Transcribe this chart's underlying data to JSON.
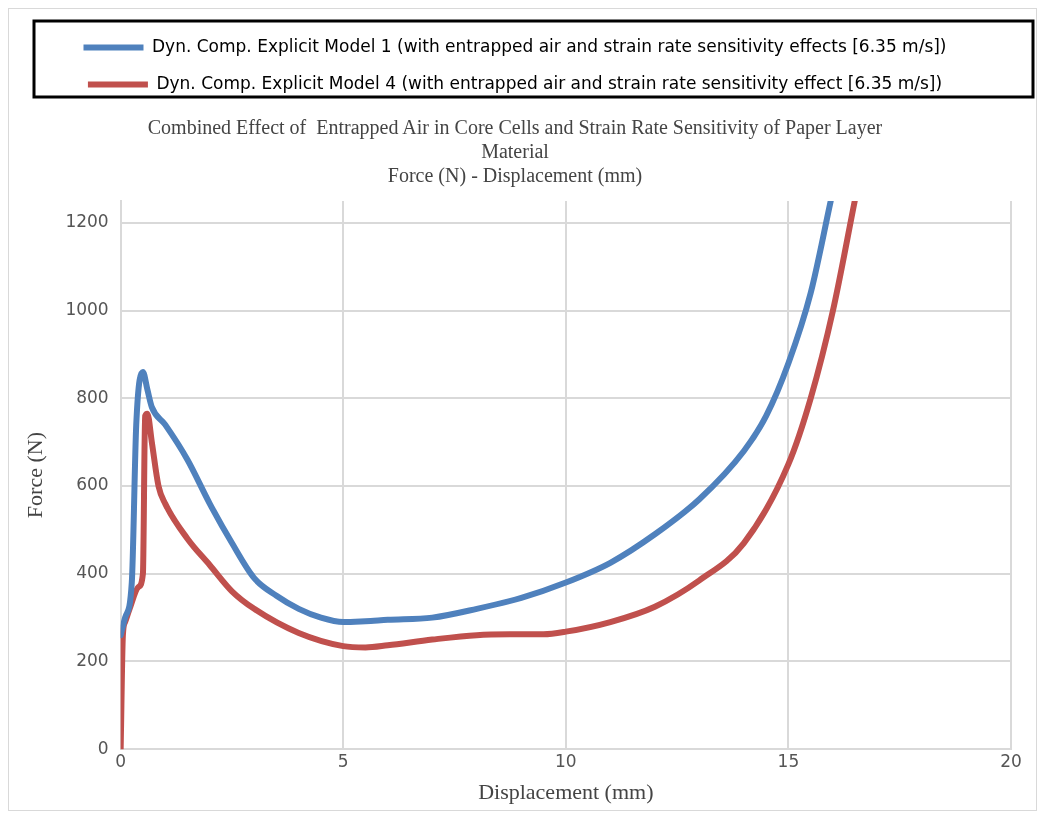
{
  "chart_data": {
    "type": "line",
    "title": "Combined Effect of  Entrapped Air in Core Cells and Strain Rate Sensitivity of Paper Layer Material",
    "subtitle": "Force (N) - Displacement (mm)",
    "xlabel": "Displacement (mm)",
    "ylabel": "Force (N)",
    "xlim": [
      0,
      20
    ],
    "xticks": [
      0,
      5,
      10,
      15,
      20
    ],
    "ylim": [
      0,
      1250
    ],
    "yticks": [
      0,
      200,
      400,
      600,
      800,
      1000,
      1200
    ],
    "grid": true,
    "legend": "top",
    "marker": "none",
    "line_style": "solid",
    "series": [
      {
        "name": "Dyn. Comp. Explicit Model 1 (with entrapped air and strain rate sensitivity effects [6.35 m/s])",
        "color": "#4f81bd",
        "x": [
          0,
          0.1,
          0.25,
          0.35,
          0.5,
          0.6,
          0.7,
          1,
          1.5,
          2,
          2.5,
          3,
          3.5,
          4,
          4.5,
          5,
          5.5,
          6,
          7,
          8,
          9,
          10,
          11,
          12,
          13,
          14,
          14.5,
          15,
          15.5,
          15.95
        ],
        "values": [
          260,
          300,
          380,
          740,
          860,
          820,
          780,
          740,
          660,
          560,
          470,
          390,
          350,
          320,
          300,
          290,
          292,
          295,
          300,
          320,
          345,
          380,
          425,
          490,
          570,
          680,
          760,
          880,
          1040,
          1250
        ]
      },
      {
        "name": "Dyn. Comp. Explicit Model 4 (with entrapped air and strain rate sensitivity effect [6.35 m/s])",
        "color": "#c0504d",
        "x": [
          0,
          0.05,
          0.1,
          0.2,
          0.4,
          0.5,
          0.55,
          0.6,
          0.7,
          0.85,
          1,
          1.5,
          2,
          2.5,
          3,
          4,
          5,
          5.5,
          6,
          7,
          8,
          9,
          9.5,
          10,
          11,
          12,
          13,
          14,
          15,
          15.5,
          16,
          16.49
        ],
        "values": [
          0,
          260,
          290,
          320,
          370,
          400,
          760,
          765,
          700,
          600,
          560,
          480,
          420,
          360,
          320,
          265,
          235,
          232,
          237,
          250,
          260,
          262,
          262,
          268,
          290,
          325,
          385,
          470,
          650,
          800,
          1000,
          1250
        ]
      }
    ]
  }
}
